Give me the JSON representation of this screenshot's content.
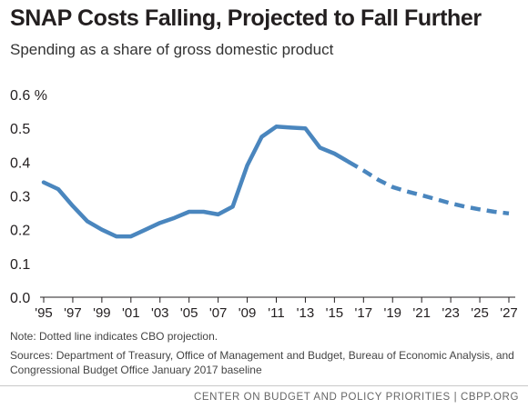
{
  "chart_data": {
    "type": "line",
    "title": "SNAP Costs Falling, Projected to Fall Further",
    "subtitle": "Spending as a share of gross domestic product",
    "xlabel": "",
    "ylabel": "",
    "y_tick_labels": [
      "0.6 %",
      "0.5",
      "0.4",
      "0.3",
      "0.2",
      "0.1",
      "0.0"
    ],
    "y_ticks": [
      0.6,
      0.5,
      0.4,
      0.3,
      0.2,
      0.1,
      0.0
    ],
    "x_tick_labels": [
      "'95",
      "'97",
      "'99",
      "'01",
      "'03",
      "'05",
      "'07",
      "'09",
      "'11",
      "'13",
      "'15",
      "'17",
      "'19",
      "'21",
      "'23",
      "'25",
      "'27"
    ],
    "x_ticks": [
      1995,
      1997,
      1999,
      2001,
      2003,
      2005,
      2007,
      2009,
      2011,
      2013,
      2015,
      2017,
      2019,
      2021,
      2023,
      2025,
      2027
    ],
    "xlim": [
      1995,
      2027
    ],
    "ylim": [
      0,
      0.6
    ],
    "grid": false,
    "series": [
      {
        "style": "solid",
        "x": [
          1995,
          1996,
          1997,
          1998,
          1999,
          2000,
          2001,
          2002,
          2003,
          2004,
          2005,
          2006,
          2007,
          2008,
          2009,
          2010,
          2011,
          2012,
          2013,
          2014,
          2015,
          2016
        ],
        "values": [
          0.34,
          0.32,
          0.27,
          0.225,
          0.2,
          0.18,
          0.18,
          0.2,
          0.22,
          0.235,
          0.253,
          0.253,
          0.245,
          0.268,
          0.39,
          0.475,
          0.505,
          0.502,
          0.5,
          0.443,
          0.425,
          0.4
        ]
      },
      {
        "style": "dashed",
        "x": [
          2016,
          2017,
          2018,
          2019,
          2020,
          2021,
          2022,
          2023,
          2024,
          2025,
          2026,
          2027
        ],
        "values": [
          0.4,
          0.375,
          0.348,
          0.326,
          0.313,
          0.302,
          0.29,
          0.278,
          0.268,
          0.26,
          0.253,
          0.248
        ]
      }
    ],
    "line_color": "#4a86be"
  },
  "note": "Note: Dotted line indicates CBO projection.",
  "sources": "Sources: Department of Treasury, Office of Management and Budget, Bureau of Economic Analysis, and Congressional Budget Office January 2017 baseline",
  "footer": "CENTER ON BUDGET AND POLICY PRIORITIES | CBPP.ORG"
}
